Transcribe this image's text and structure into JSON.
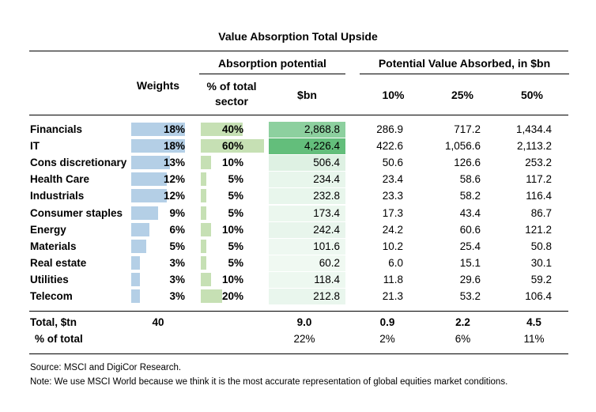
{
  "title": "Value Absorption Total Upside",
  "headers": {
    "absorption_potential": "Absorption potential",
    "potential_value_absorbed": "Potential Value Absorbed, in $bn",
    "weights": "Weights",
    "pct_total_sector": "% of total sector",
    "bn": "$bn",
    "p10": "10%",
    "p25": "25%",
    "p50": "50%"
  },
  "colors": {
    "weight_bar": "#b4cfe6",
    "pct_bar": "#c6e0b4",
    "bn_green_high": "#63be7b",
    "bn_green_low": "#f3faf5"
  },
  "rows": [
    {
      "sector": "Financials",
      "weight": "18%",
      "weight_val": 18,
      "pct": "40%",
      "pct_val": 40,
      "bn": "2,868.8",
      "bn_val": 2868.8,
      "v10": "286.9",
      "v25": "717.2",
      "v50": "1,434.4"
    },
    {
      "sector": "IT",
      "weight": "18%",
      "weight_val": 18,
      "pct": "60%",
      "pct_val": 60,
      "bn": "4,226.4",
      "bn_val": 4226.4,
      "v10": "422.6",
      "v25": "1,056.6",
      "v50": "2,113.2"
    },
    {
      "sector": "Cons discretionary",
      "weight": "13%",
      "weight_val": 13,
      "pct": "10%",
      "pct_val": 10,
      "bn": "506.4",
      "bn_val": 506.4,
      "v10": "50.6",
      "v25": "126.6",
      "v50": "253.2"
    },
    {
      "sector": "Health Care",
      "weight": "12%",
      "weight_val": 12,
      "pct": "5%",
      "pct_val": 5,
      "bn": "234.4",
      "bn_val": 234.4,
      "v10": "23.4",
      "v25": "58.6",
      "v50": "117.2"
    },
    {
      "sector": "Industrials",
      "weight": "12%",
      "weight_val": 12,
      "pct": "5%",
      "pct_val": 5,
      "bn": "232.8",
      "bn_val": 232.8,
      "v10": "23.3",
      "v25": "58.2",
      "v50": "116.4"
    },
    {
      "sector": "Consumer staples",
      "weight": "9%",
      "weight_val": 9,
      "pct": "5%",
      "pct_val": 5,
      "bn": "173.4",
      "bn_val": 173.4,
      "v10": "17.3",
      "v25": "43.4",
      "v50": "86.7"
    },
    {
      "sector": "Energy",
      "weight": "6%",
      "weight_val": 6,
      "pct": "10%",
      "pct_val": 10,
      "bn": "242.4",
      "bn_val": 242.4,
      "v10": "24.2",
      "v25": "60.6",
      "v50": "121.2"
    },
    {
      "sector": "Materials",
      "weight": "5%",
      "weight_val": 5,
      "pct": "5%",
      "pct_val": 5,
      "bn": "101.6",
      "bn_val": 101.6,
      "v10": "10.2",
      "v25": "25.4",
      "v50": "50.8"
    },
    {
      "sector": "Real estate",
      "weight": "3%",
      "weight_val": 3,
      "pct": "5%",
      "pct_val": 5,
      "bn": "60.2",
      "bn_val": 60.2,
      "v10": "6.0",
      "v25": "15.1",
      "v50": "30.1"
    },
    {
      "sector": "Utilities",
      "weight": "3%",
      "weight_val": 3,
      "pct": "10%",
      "pct_val": 10,
      "bn": "118.4",
      "bn_val": 118.4,
      "v10": "11.8",
      "v25": "29.6",
      "v50": "59.2"
    },
    {
      "sector": "Telecom",
      "weight": "3%",
      "weight_val": 3,
      "pct": "20%",
      "pct_val": 20,
      "bn": "212.8",
      "bn_val": 212.8,
      "v10": "21.3",
      "v25": "53.2",
      "v50": "106.4"
    }
  ],
  "total": {
    "label": "Total, $tn",
    "weight": "40",
    "bn": "9.0",
    "v10": "0.9",
    "v25": "2.2",
    "v50": "4.5"
  },
  "pct_of_total": {
    "label": "% of total",
    "bn": "22%",
    "v10": "2%",
    "v25": "6%",
    "v50": "11%"
  },
  "source": "Source: MSCI and DigiCor Research.",
  "note": "Note: We use MSCI World because we think it is the most accurate representation of global equities market conditions."
}
